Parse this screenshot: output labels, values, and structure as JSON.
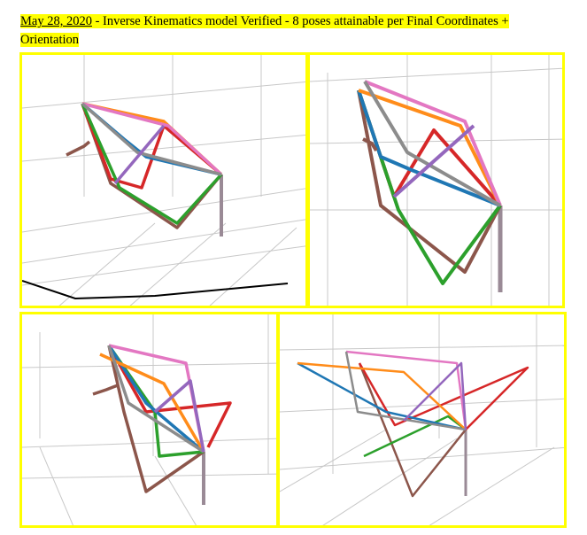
{
  "caption": {
    "date": "May 28, 2020",
    "text": " - Inverse Kinematics model Verified - 8 poses attainable per Final Coordinates + Orientation"
  },
  "figures": [
    {
      "name": "pose-plot-1"
    },
    {
      "name": "pose-plot-2"
    },
    {
      "name": "pose-plot-3"
    },
    {
      "name": "pose-plot-4"
    }
  ],
  "colors": {
    "highlight": "#ffff00",
    "grid": "#c8c8c8",
    "orange": "#ff8c1a",
    "pink": "#e377c2",
    "gray": "#8c8c8c",
    "blue": "#1f77b4",
    "red": "#d62728",
    "purple": "#9467bd",
    "green": "#2ca02c",
    "brown": "#8c564b",
    "base": "#9a8a96"
  }
}
